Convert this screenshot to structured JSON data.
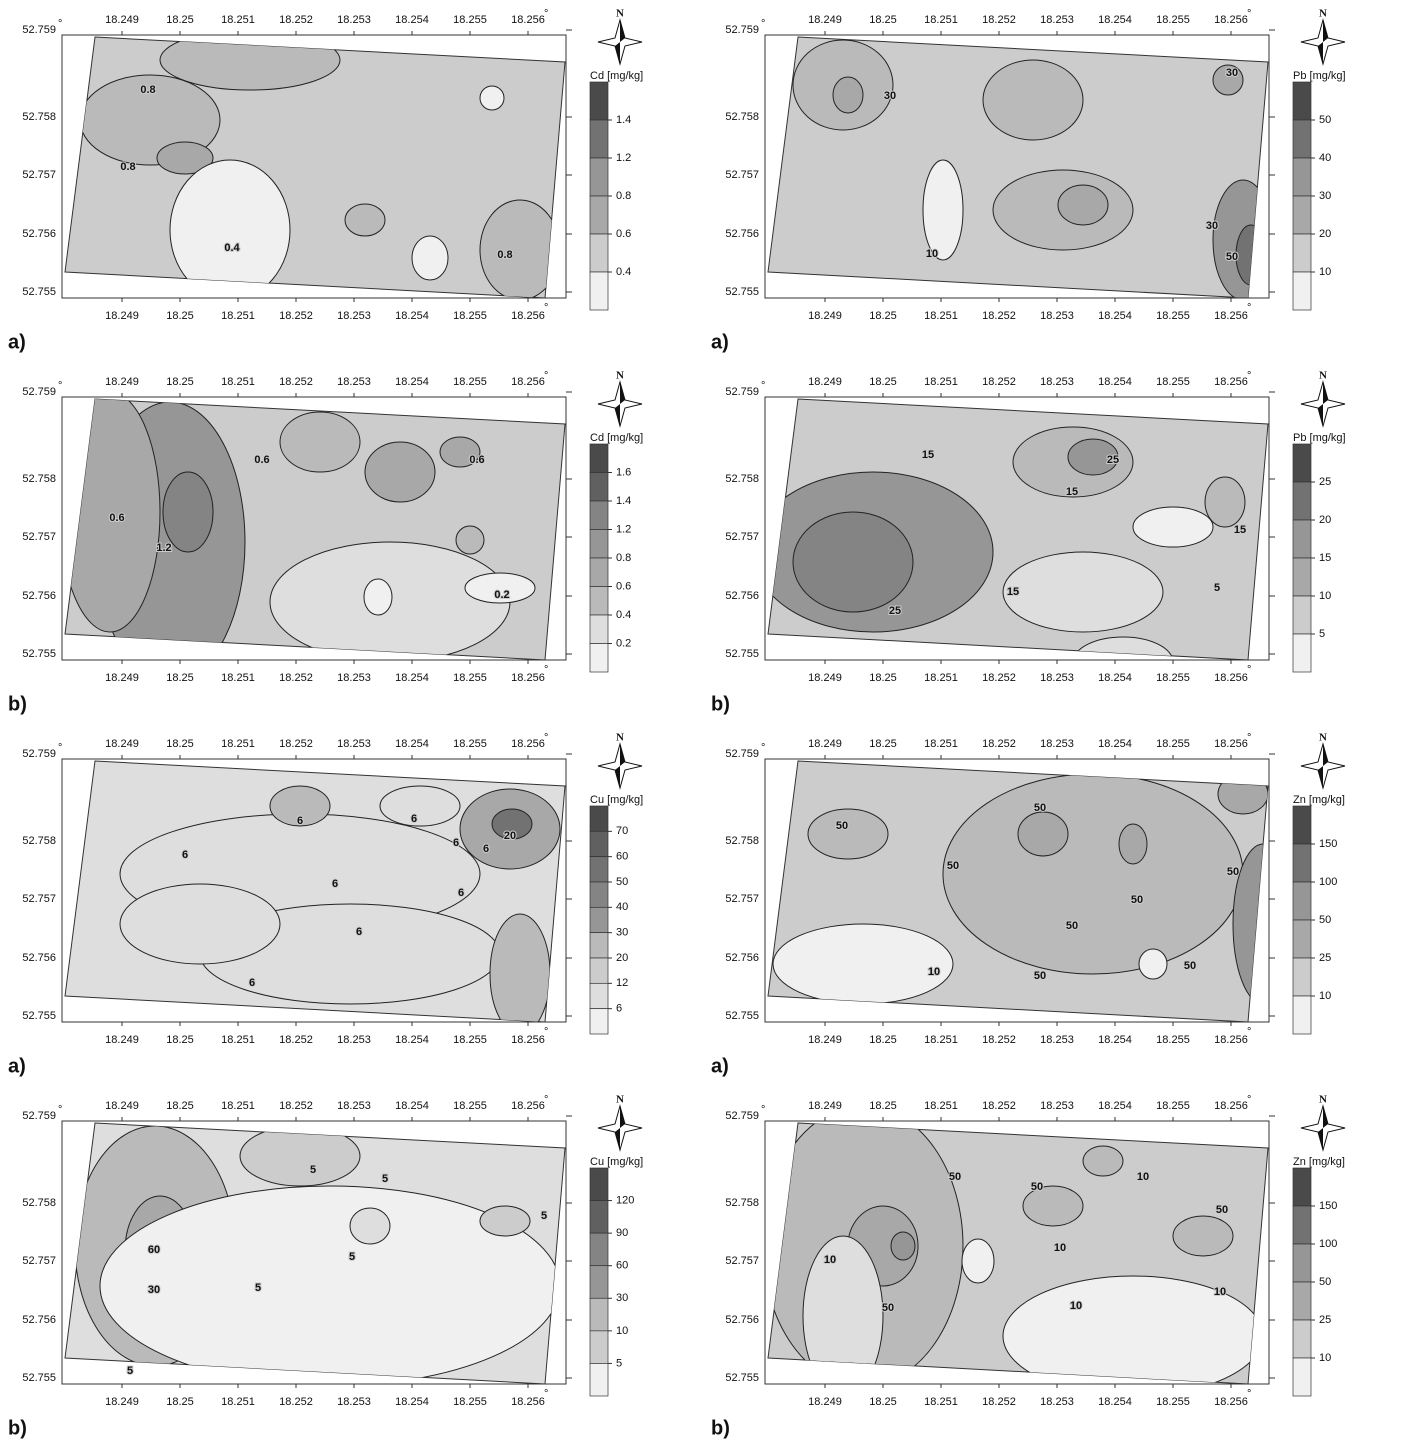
{
  "panels": [
    {
      "label": "a)",
      "north": "N",
      "degree": "°",
      "x_ticks": [
        "18.249",
        "18.25",
        "18.251",
        "18.252",
        "18.253",
        "18.254",
        "18.255",
        "18.256"
      ],
      "y_ticks": [
        "52.759",
        "52.758",
        "52.757",
        "52.756",
        "52.755"
      ],
      "legend": {
        "title": "Cd [mg/kg]",
        "levels": [
          "1.4",
          "1.2",
          "0.8",
          "0.6",
          "0.4"
        ]
      },
      "contour_labels": [
        "0.8",
        "0.8",
        "0.4",
        "0.8"
      ]
    },
    {
      "label": "b)",
      "north": "N",
      "degree": "°",
      "x_ticks": [
        "18.249",
        "18.25",
        "18.251",
        "18.252",
        "18.253",
        "18.254",
        "18.255",
        "18.256"
      ],
      "y_ticks": [
        "52.759",
        "52.758",
        "52.757",
        "52.756",
        "52.755"
      ],
      "legend": {
        "title": "Cd [mg/kg]",
        "levels": [
          "1.6",
          "1.4",
          "1.2",
          "0.8",
          "0.6",
          "0.4",
          "0.2"
        ]
      },
      "contour_labels": [
        "0.6",
        "0.6",
        "1.2",
        "0.6",
        "0.2"
      ]
    },
    {
      "label": "a)",
      "north": "N",
      "degree": "°",
      "x_ticks": [
        "18.249",
        "18.25",
        "18.251",
        "18.252",
        "18.253",
        "18.254",
        "18.255",
        "18.256"
      ],
      "y_ticks": [
        "52.759",
        "52.758",
        "52.757",
        "52.756",
        "52.755"
      ],
      "legend": {
        "title": "Cu [mg/kg]",
        "levels": [
          "70",
          "60",
          "50",
          "40",
          "30",
          "20",
          "12",
          "6"
        ]
      },
      "contour_labels": [
        "6",
        "6",
        "6",
        "6",
        "20",
        "6",
        "6",
        "6",
        "6",
        "6"
      ]
    },
    {
      "label": "b)",
      "north": "N",
      "degree": "°",
      "x_ticks": [
        "18.249",
        "18.25",
        "18.251",
        "18.252",
        "18.253",
        "18.254",
        "18.255",
        "18.256"
      ],
      "y_ticks": [
        "52.759",
        "52.758",
        "52.757",
        "52.756",
        "52.755"
      ],
      "legend": {
        "title": "Cu [mg/kg]",
        "levels": [
          "120",
          "90",
          "60",
          "30",
          "10",
          "5"
        ]
      },
      "contour_labels": [
        "5",
        "5",
        "5",
        "5",
        "5",
        "60",
        "30",
        "5"
      ]
    },
    {
      "label": "a)",
      "north": "N",
      "degree": "°",
      "x_ticks": [
        "18.249",
        "18.25",
        "18.251",
        "18.252",
        "18.253",
        "18.254",
        "18.255",
        "18.256"
      ],
      "y_ticks": [
        "52.759",
        "52.758",
        "52.757",
        "52.756",
        "52.755"
      ],
      "legend": {
        "title": "Pb [mg/kg]",
        "levels": [
          "50",
          "40",
          "30",
          "20",
          "10"
        ]
      },
      "contour_labels": [
        "30",
        "30",
        "30",
        "10",
        "50"
      ]
    },
    {
      "label": "b)",
      "north": "N",
      "degree": "°",
      "x_ticks": [
        "18.249",
        "18.25",
        "18.251",
        "18.252",
        "18.253",
        "18.254",
        "18.255",
        "18.256"
      ],
      "y_ticks": [
        "52.759",
        "52.758",
        "52.757",
        "52.756",
        "52.755"
      ],
      "legend": {
        "title": "Pb [mg/kg]",
        "levels": [
          "25",
          "20",
          "15",
          "10",
          "5"
        ]
      },
      "contour_labels": [
        "15",
        "25",
        "15",
        "15",
        "15",
        "25",
        "5"
      ]
    },
    {
      "label": "a)",
      "north": "N",
      "degree": "°",
      "x_ticks": [
        "18.249",
        "18.25",
        "18.251",
        "18.252",
        "18.253",
        "18.254",
        "18.255",
        "18.256"
      ],
      "y_ticks": [
        "52.759",
        "52.758",
        "52.757",
        "52.756",
        "52.755"
      ],
      "legend": {
        "title": "Zn [mg/kg]",
        "levels": [
          "150",
          "100",
          "50",
          "25",
          "10"
        ]
      },
      "contour_labels": [
        "50",
        "50",
        "50",
        "50",
        "50",
        "50",
        "50",
        "10",
        "50"
      ]
    },
    {
      "label": "b)",
      "north": "N",
      "degree": "°",
      "x_ticks": [
        "18.249",
        "18.25",
        "18.251",
        "18.252",
        "18.253",
        "18.254",
        "18.255",
        "18.256"
      ],
      "y_ticks": [
        "52.759",
        "52.758",
        "52.757",
        "52.756",
        "52.755"
      ],
      "legend": {
        "title": "Zn [mg/kg]",
        "levels": [
          "150",
          "100",
          "50",
          "25",
          "10"
        ]
      },
      "contour_labels": [
        "50",
        "10",
        "50",
        "10",
        "50",
        "10",
        "50",
        "10",
        "10"
      ]
    }
  ]
}
